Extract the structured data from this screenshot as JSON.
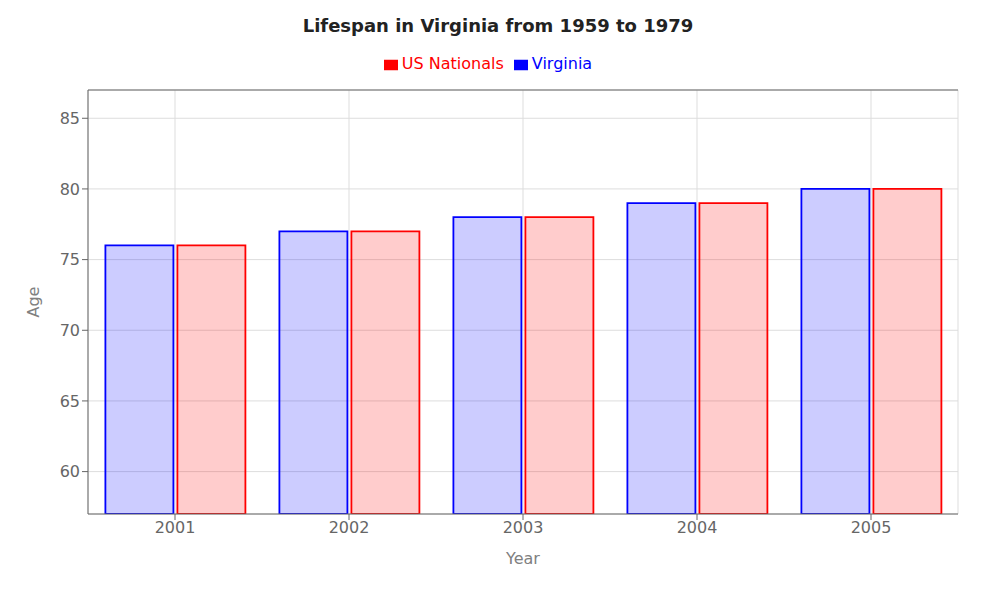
{
  "chart_data": {
    "type": "bar",
    "title": "Lifespan in Virginia from 1959 to 1979",
    "x_label": "Year",
    "y_label": "Age",
    "categories": [
      "2001",
      "2002",
      "2003",
      "2004",
      "2005"
    ],
    "series": [
      {
        "name": "Virginia",
        "color": "#0000ff",
        "values": [
          76,
          77,
          78,
          79,
          80
        ]
      },
      {
        "name": "US Nationals",
        "color": "#ff0000",
        "values": [
          76,
          77,
          78,
          79,
          80
        ]
      }
    ],
    "ylim": [
      57,
      87
    ],
    "yticks": [
      60,
      65,
      70,
      75,
      80,
      85
    ],
    "grid": true,
    "legend": "top"
  }
}
